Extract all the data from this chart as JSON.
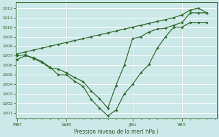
{
  "bg_color": "#cce8e8",
  "grid_color": "#ffffff",
  "line_color": "#2d6a2d",
  "marker_color": "#2d6a2d",
  "xlabel": "Pression niveau de la mer( hPa )",
  "xlabel_color": "#2d5a2d",
  "tick_color": "#2d6a2d",
  "ylim": [
    1000.4,
    1012.6
  ],
  "yticks": [
    1001,
    1002,
    1003,
    1004,
    1005,
    1006,
    1007,
    1008,
    1009,
    1010,
    1011,
    1012
  ],
  "xlim": [
    -0.1,
    12.1
  ],
  "day_positions": [
    0,
    3,
    7,
    10
  ],
  "day_labels": [
    "Mer",
    "Sam",
    "Jeu",
    "Ven"
  ],
  "line1_x": [
    0,
    0.5,
    1.0,
    1.5,
    2.0,
    2.5,
    3.0,
    3.5,
    4.0,
    4.5,
    5.0,
    5.5,
    6.0,
    6.5,
    7.0,
    7.5,
    8.0,
    8.5,
    9.0,
    9.5,
    10.0,
    10.5,
    11.0,
    11.5
  ],
  "line1_y": [
    1006.6,
    1007.0,
    1006.8,
    1006.4,
    1005.8,
    1005.0,
    1005.0,
    1004.3,
    1003.8,
    1002.4,
    1001.5,
    1000.7,
    1001.3,
    1003.0,
    1004.0,
    1005.2,
    1006.1,
    1007.8,
    1009.0,
    1010.0,
    1010.0,
    1010.5,
    1010.5,
    1010.5
  ],
  "line2_x": [
    0,
    0.5,
    1.0,
    1.5,
    2.0,
    2.5,
    3.0,
    3.5,
    4.0,
    4.5,
    5.0,
    5.5,
    6.0,
    6.5,
    7.0,
    7.5,
    8.0,
    8.5,
    9.0,
    9.5,
    10.0,
    10.5,
    11.0,
    11.5
  ],
  "line2_y": [
    1007.0,
    1007.1,
    1006.7,
    1006.3,
    1005.7,
    1005.6,
    1005.2,
    1004.7,
    1004.3,
    1003.3,
    1002.5,
    1001.5,
    1003.9,
    1006.0,
    1008.8,
    1009.0,
    1009.5,
    1009.8,
    1009.9,
    1010.2,
    1010.5,
    1011.5,
    1011.5,
    1011.5
  ],
  "line3_x": [
    0,
    0.5,
    1.0,
    1.5,
    2.0,
    2.5,
    3.0,
    3.5,
    4.0,
    4.5,
    5.0,
    5.5,
    6.0,
    6.5,
    7.0,
    7.5,
    8.0,
    8.5,
    9.0,
    9.5,
    10.0,
    10.5,
    11.0,
    11.5
  ],
  "line3_y": [
    1007.2,
    1007.4,
    1007.6,
    1007.8,
    1008.0,
    1008.2,
    1008.4,
    1008.6,
    1008.8,
    1009.0,
    1009.2,
    1009.4,
    1009.6,
    1009.8,
    1010.0,
    1010.2,
    1010.4,
    1010.6,
    1010.8,
    1011.0,
    1011.3,
    1011.8,
    1012.0,
    1011.5
  ]
}
